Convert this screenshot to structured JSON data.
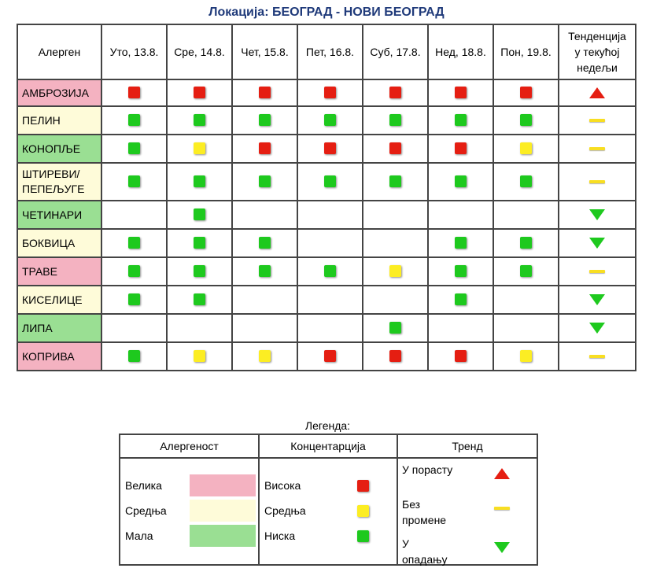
{
  "title": "Локација: БЕОГРАД - НОВИ БЕОГРАД",
  "colors": {
    "high_bg": "#f4b2c1",
    "mid_bg": "#fefbd9",
    "low_bg": "#9adf93",
    "red": "#e51e12",
    "yellow": "#fced23",
    "green": "#1ec91e",
    "up": "#e51e12",
    "same": "#f8de22",
    "down": "#1ec91e"
  },
  "header": {
    "allergen_label": "Алерген",
    "days": [
      "Уто, 13.8.",
      "Сре, 14.8.",
      "Чет, 15.8.",
      "Пет, 16.8.",
      "Суб, 17.8.",
      "Нед, 18.8.",
      "Пон, 19.8."
    ],
    "trend_line1": "Тенденција",
    "trend_line2": "у текућој",
    "trend_line3": "недељи"
  },
  "rows": [
    {
      "name_l1": "АМБРОЗИЈА",
      "name_l2": "",
      "allergenicity": "high",
      "days": [
        "red",
        "red",
        "red",
        "red",
        "red",
        "red",
        "red"
      ],
      "trend": "up"
    },
    {
      "name_l1": "ПЕЛИН",
      "name_l2": "",
      "allergenicity": "mid",
      "days": [
        "green",
        "green",
        "green",
        "green",
        "green",
        "green",
        "green"
      ],
      "trend": "same"
    },
    {
      "name_l1": "КОНОПЉЕ",
      "name_l2": "",
      "allergenicity": "low",
      "days": [
        "green",
        "yellow",
        "red",
        "red",
        "red",
        "red",
        "yellow"
      ],
      "trend": "same"
    },
    {
      "name_l1": "ШТИРЕВИ/",
      "name_l2": "ПЕПЕЉУГЕ",
      "allergenicity": "mid",
      "days": [
        "green",
        "green",
        "green",
        "green",
        "green",
        "green",
        "green"
      ],
      "trend": "same"
    },
    {
      "name_l1": "ЧЕТИНАРИ",
      "name_l2": "",
      "allergenicity": "low",
      "days": [
        "",
        "green",
        "",
        "",
        "",
        "",
        ""
      ],
      "trend": "down"
    },
    {
      "name_l1": "БОКВИЦА",
      "name_l2": "",
      "allergenicity": "mid",
      "days": [
        "green",
        "green",
        "green",
        "",
        "",
        "green",
        "green"
      ],
      "trend": "down"
    },
    {
      "name_l1": "ТРАВЕ",
      "name_l2": "",
      "allergenicity": "high",
      "days": [
        "green",
        "green",
        "green",
        "green",
        "yellow",
        "green",
        "green"
      ],
      "trend": "same"
    },
    {
      "name_l1": "КИСЕЛИЦЕ",
      "name_l2": "",
      "allergenicity": "mid",
      "days": [
        "green",
        "green",
        "",
        "",
        "",
        "green",
        ""
      ],
      "trend": "down"
    },
    {
      "name_l1": "ЛИПА",
      "name_l2": "",
      "allergenicity": "low",
      "days": [
        "",
        "",
        "",
        "",
        "green",
        "",
        ""
      ],
      "trend": "down"
    },
    {
      "name_l1": "КОПРИВА",
      "name_l2": "",
      "allergenicity": "high",
      "days": [
        "green",
        "yellow",
        "yellow",
        "red",
        "red",
        "red",
        "yellow"
      ],
      "trend": "same"
    }
  ],
  "legend": {
    "title": "Легенда:",
    "allergenicity_header": "Алергеност",
    "concentration_header": "Концентарција",
    "trend_header": "Тренд",
    "allergenicity": [
      {
        "label": "Велика",
        "level": "high"
      },
      {
        "label": "Средња",
        "level": "mid"
      },
      {
        "label": "Мала",
        "level": "low"
      }
    ],
    "concentration": [
      {
        "label": "Висока",
        "level": "red"
      },
      {
        "label": "Средња",
        "level": "yellow"
      },
      {
        "label": "Ниска",
        "level": "green"
      }
    ],
    "trend": [
      {
        "line1": "У порасту",
        "line2": "",
        "kind": "up"
      },
      {
        "line1": "Без",
        "line2": "промене",
        "kind": "same"
      },
      {
        "line1": "У",
        "line2": "опадању",
        "kind": "down"
      }
    ]
  }
}
